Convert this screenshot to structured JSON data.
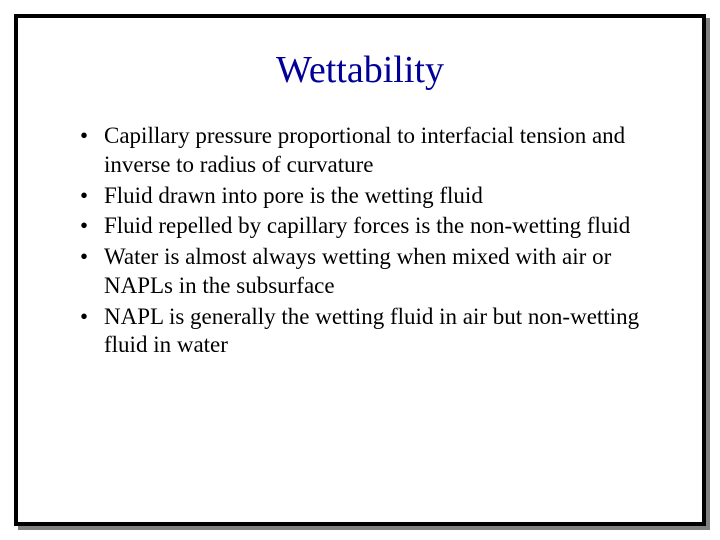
{
  "slide": {
    "title": "Wettability",
    "title_color": "#000099",
    "title_fontsize": 38,
    "body_fontsize": 23,
    "body_color": "#000000",
    "background_color": "#ffffff",
    "border_color": "#000000",
    "border_width": 4,
    "bullets": [
      "Capillary pressure proportional to interfacial tension and inverse to radius of curvature",
      "Fluid drawn into pore is the wetting fluid",
      "Fluid repelled by capillary forces is the non-wetting fluid",
      "Water is almost always wetting when mixed with air or NAPLs in the subsurface",
      "NAPL is generally the wetting fluid in air but non-wetting fluid in water"
    ]
  }
}
